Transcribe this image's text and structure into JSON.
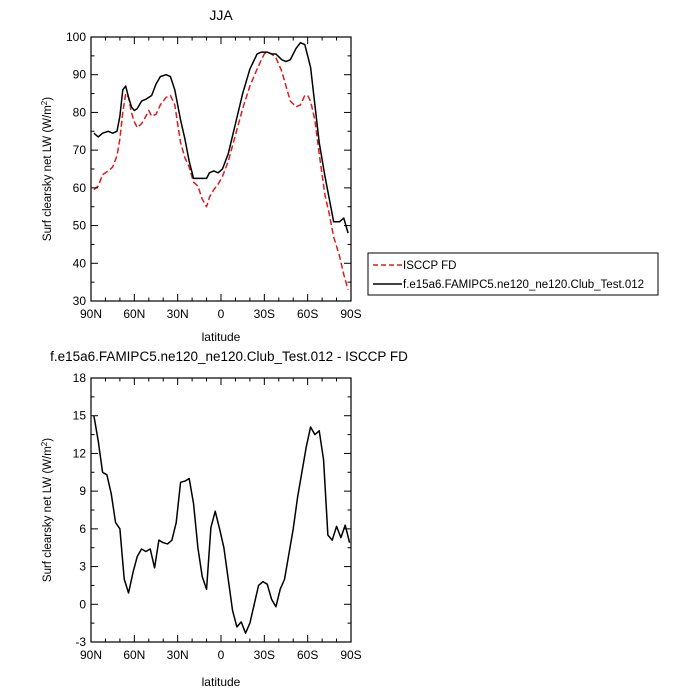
{
  "chart_data": [
    {
      "type": "line",
      "title": "JJA",
      "xlabel": "latitude",
      "ylabel_main": "Surf clearsky net LW (W/m",
      "ylabel_sup": "2",
      "ylabel_close": ")",
      "xlim": [
        90,
        -90
      ],
      "ylim": [
        30,
        100
      ],
      "xticks": [
        90,
        60,
        30,
        0,
        -30,
        -60,
        -90
      ],
      "xtick_labels": [
        "90N",
        "60N",
        "30N",
        "0",
        "30S",
        "60S",
        "90S"
      ],
      "yticks": [
        30,
        40,
        50,
        60,
        70,
        80,
        90,
        100
      ],
      "ytick_labels": [
        "30",
        "40",
        "50",
        "60",
        "70",
        "80",
        "90",
        "100"
      ],
      "grid": false,
      "legend": "right",
      "series": [
        {
          "name": "ISCCP FD",
          "color": "#e01a1a",
          "dash": "dashed",
          "x": [
            88,
            85,
            82,
            78,
            75,
            72,
            70,
            68,
            66,
            64,
            62,
            60,
            58,
            55,
            52,
            50,
            48,
            45,
            42,
            38,
            35,
            32,
            30,
            28,
            25,
            22,
            19,
            16,
            13,
            10,
            8,
            5,
            2,
            -1,
            -5,
            -10,
            -15,
            -20,
            -25,
            -28,
            -30,
            -32,
            -35,
            -38,
            -42,
            -45,
            -48,
            -52,
            -55,
            -58,
            -60,
            -62,
            -65,
            -68,
            -72,
            -75,
            -78,
            -82,
            -85,
            -88
          ],
          "y": [
            59.5,
            60.5,
            63.5,
            64.5,
            65.5,
            68.5,
            73,
            80,
            85,
            84,
            80,
            77.5,
            76,
            77,
            79,
            80.5,
            79,
            79.5,
            82,
            84,
            84.5,
            82,
            77,
            72,
            68,
            65.5,
            61.5,
            60.5,
            57,
            55,
            57.5,
            59.5,
            61,
            63,
            67,
            74,
            81,
            87,
            91.5,
            94,
            95.5,
            96,
            95.5,
            94.5,
            91,
            87,
            83,
            81.5,
            82,
            84.5,
            84.5,
            83,
            78,
            69,
            58,
            53,
            47,
            42,
            37,
            33
          ]
        },
        {
          "name": "f.e15a6.FAMIPC5.ne120_ne120.Club_Test.012",
          "color": "#000000",
          "dash": "solid",
          "x": [
            88,
            85,
            82,
            78,
            75,
            72,
            70,
            68,
            66,
            64,
            62,
            60,
            58,
            55,
            52,
            50,
            48,
            45,
            42,
            38,
            35,
            32,
            30,
            28,
            25,
            22,
            19,
            16,
            13,
            10,
            8,
            5,
            2,
            -1,
            -5,
            -10,
            -15,
            -20,
            -25,
            -28,
            -30,
            -32,
            -35,
            -38,
            -42,
            -45,
            -48,
            -52,
            -55,
            -58,
            -60,
            -62,
            -65,
            -68,
            -72,
            -75,
            -78,
            -82,
            -85,
            -88
          ],
          "y": [
            74.5,
            73.5,
            74.5,
            75,
            74.5,
            75,
            79,
            86,
            87,
            84,
            81.5,
            80.5,
            81,
            83,
            83.5,
            84,
            84.5,
            87.5,
            89.5,
            90,
            89.5,
            86,
            82,
            78,
            73,
            67,
            62.5,
            62.5,
            62.5,
            62.5,
            64,
            64.5,
            64,
            65,
            69,
            77,
            85,
            91.5,
            95.5,
            96,
            96,
            96,
            95.5,
            95.5,
            94,
            93.5,
            94,
            97,
            98.5,
            98,
            95,
            92,
            82,
            72,
            63,
            57,
            51,
            51,
            52,
            48
          ]
        }
      ]
    },
    {
      "type": "line",
      "title": "f.e15a6.FAMIPC5.ne120_ne120.Club_Test.012 - ISCCP FD",
      "xlabel": "latitude",
      "ylabel_main": "Surf clearsky net LW (W/m",
      "ylabel_sup": "2",
      "ylabel_close": ")",
      "xlim": [
        90,
        -90
      ],
      "ylim": [
        -3,
        18
      ],
      "xticks": [
        90,
        60,
        30,
        0,
        -30,
        -60,
        -90
      ],
      "xtick_labels": [
        "90N",
        "60N",
        "30N",
        "0",
        "30S",
        "60S",
        "90S"
      ],
      "yticks": [
        -3,
        0,
        3,
        6,
        9,
        12,
        15,
        18
      ],
      "ytick_labels": [
        "-3",
        "0",
        "3",
        "6",
        "9",
        "12",
        "15",
        "18"
      ],
      "grid": false,
      "series": [
        {
          "color": "#000000",
          "dash": "solid",
          "x": [
            88,
            85,
            82,
            79,
            76,
            73,
            70,
            67,
            64,
            61,
            58,
            55,
            52,
            49,
            46,
            43,
            40,
            37,
            34,
            31,
            28,
            25,
            22,
            19,
            16,
            13,
            10,
            7,
            4,
            1,
            -2,
            -5,
            -8,
            -11,
            -14,
            -17,
            -20,
            -23,
            -26,
            -29,
            -32,
            -35,
            -38,
            -41,
            -44,
            -47,
            -50,
            -53,
            -56,
            -59,
            -62,
            -65,
            -68,
            -71,
            -74,
            -77,
            -80,
            -83,
            -86,
            -89
          ],
          "y": [
            15,
            13,
            10.5,
            10.3,
            8.8,
            6.5,
            6,
            2,
            0.9,
            2.5,
            3.8,
            4.4,
            4.2,
            4.4,
            2.9,
            5.1,
            4.9,
            4.8,
            5.1,
            6.5,
            9.7,
            9.8,
            10,
            8,
            4.5,
            2.2,
            1.2,
            6.1,
            7.4,
            6,
            4.5,
            2,
            -0.5,
            -1.8,
            -1.4,
            -2.3,
            -1.5,
            0,
            1.5,
            1.8,
            1.6,
            0.4,
            -0.2,
            1.2,
            2,
            4,
            6,
            8.5,
            10.5,
            12.5,
            14.1,
            13.5,
            13.8,
            11.5,
            5.5,
            5.1,
            6.2,
            5.3,
            6.3,
            4.9
          ]
        }
      ]
    }
  ]
}
